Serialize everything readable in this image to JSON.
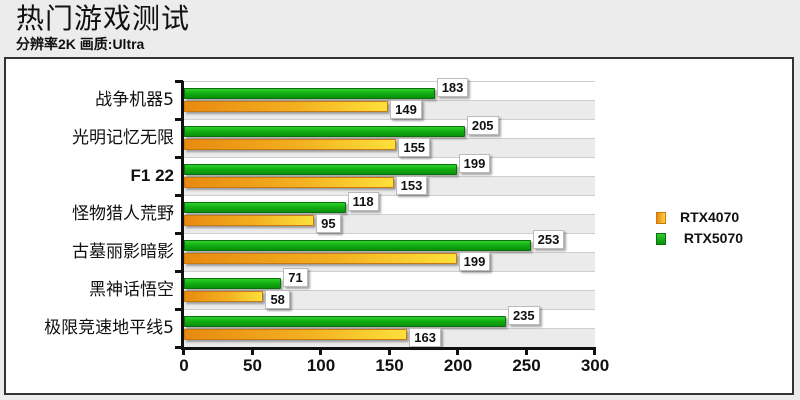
{
  "header": {
    "title": "热门游戏测试",
    "subtitle": "分辨率2K 画质:Ultra"
  },
  "legend": {
    "items": [
      {
        "label": "RTX4070",
        "color": "#f0a020"
      },
      {
        "label": " RTX5070",
        "color": "#14b014"
      }
    ]
  },
  "axis": {
    "x_ticks": [
      "0",
      "50",
      "100",
      "150",
      "200",
      "250",
      "300"
    ]
  },
  "categories": [
    {
      "label": "战争机器5",
      "bold": false
    },
    {
      "label": "光明记忆无限",
      "bold": false
    },
    {
      "label": "F1 22",
      "bold": true
    },
    {
      "label": "怪物猎人荒野",
      "bold": false
    },
    {
      "label": "古墓丽影暗影",
      "bold": false
    },
    {
      "label": "黑神话悟空",
      "bold": false
    },
    {
      "label": "极限竞速地平线5",
      "bold": false
    }
  ],
  "chart_data": {
    "type": "bar",
    "orientation": "horizontal",
    "title": "热门游戏测试",
    "subtitle": "分辨率2K 画质:Ultra",
    "categories": [
      "战争机器5",
      "光明记忆无限",
      "F1 22",
      "怪物猎人荒野",
      "古墓丽影暗影",
      "黑神话悟空",
      "极限竞速地平线5"
    ],
    "series": [
      {
        "name": "RTX5070",
        "color": "#14b014",
        "values": [
          183,
          205,
          199,
          118,
          253,
          71,
          235
        ]
      },
      {
        "name": "RTX4070",
        "color": "#f0a020",
        "values": [
          149,
          155,
          153,
          95,
          199,
          58,
          163
        ]
      }
    ],
    "xlabel": "",
    "ylabel": "",
    "xlim": [
      0,
      300
    ],
    "x_ticks": [
      0,
      50,
      100,
      150,
      200,
      250,
      300
    ],
    "grid": "alternating horizontal bands",
    "legend_position": "right",
    "data_labels": true
  }
}
